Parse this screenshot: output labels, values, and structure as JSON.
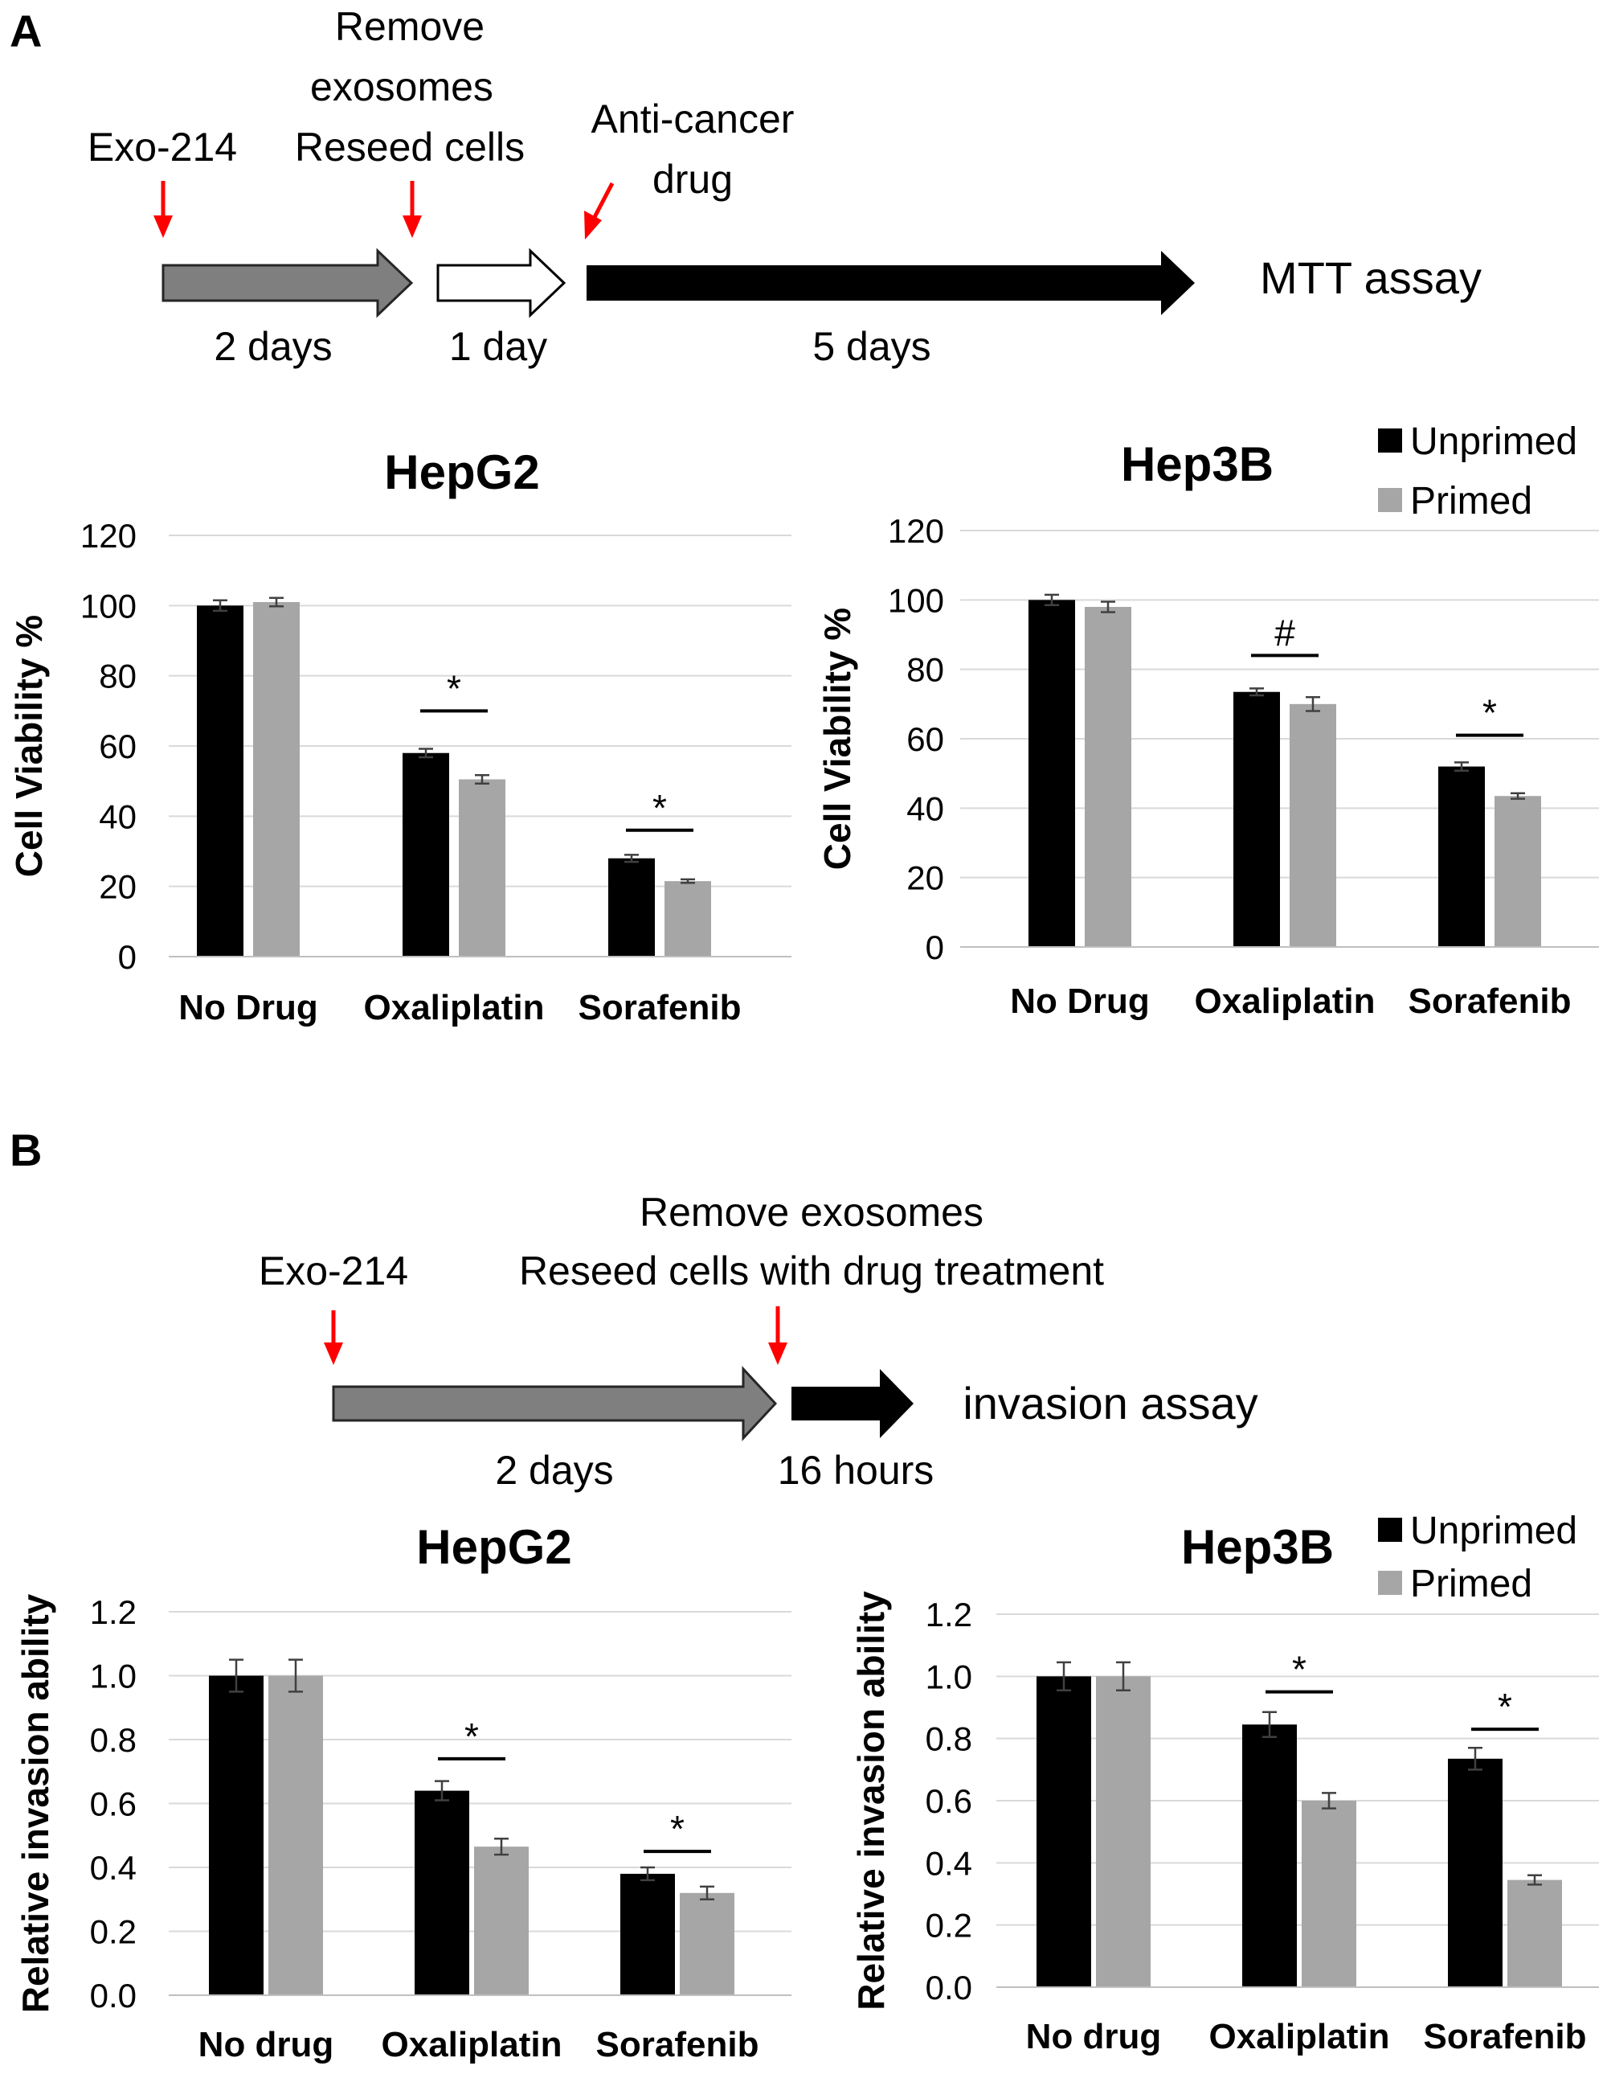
{
  "colors": {
    "unprimed": "#000000",
    "primed": "#a6a6a6",
    "arrow_gray": "#7f7f7f",
    "marker_red": "#ff0000",
    "grid": "#d9d9d9"
  },
  "panelA": {
    "label": "A",
    "timeline": {
      "step1": [
        "Exo-214"
      ],
      "step2": [
        "Remove",
        "exosomes",
        "Reseed cells"
      ],
      "step3": [
        "Anti-cancer",
        "drug"
      ],
      "dur1": "2 days",
      "dur2": "1 day",
      "dur3": "5 days",
      "end_label": "MTT assay"
    }
  },
  "panelB": {
    "label": "B",
    "timeline": {
      "step1": [
        "Exo-214"
      ],
      "step2": [
        "Remove exosomes",
        "Reseed cells with drug treatment"
      ],
      "dur1": "2 days",
      "dur2": "16 hours",
      "end_label": "invasion assay"
    }
  },
  "legend": {
    "unprimed": "Unprimed",
    "primed": "Primed",
    "placement": "top-right"
  },
  "chart_data": [
    {
      "type": "bar",
      "title": "HepG2",
      "ylabel": "Cell Viability %",
      "categories": [
        "No Drug",
        "Oxaliplatin",
        "Sorafenib"
      ],
      "ylim": [
        0,
        120
      ],
      "yticks": [
        0,
        20,
        40,
        60,
        80,
        100,
        120
      ],
      "tick_decimals": 0,
      "grid": true,
      "series": [
        {
          "name": "Unprimed",
          "values": [
            100,
            58,
            28
          ],
          "errors": [
            1.5,
            1.2,
            1
          ]
        },
        {
          "name": "Primed",
          "values": [
            101,
            50.5,
            21.5
          ],
          "errors": [
            1.2,
            1.2,
            0.5
          ]
        }
      ],
      "annotations": [
        {
          "category": "Oxaliplatin",
          "symbol": "*",
          "y": 70
        },
        {
          "category": "Sorafenib",
          "symbol": "*",
          "y": 36
        }
      ]
    },
    {
      "type": "bar",
      "title": "Hep3B",
      "ylabel": "Cell Viability %",
      "categories": [
        "No Drug",
        "Oxaliplatin",
        "Sorafenib"
      ],
      "ylim": [
        0,
        120
      ],
      "yticks": [
        0,
        20,
        40,
        60,
        80,
        100,
        120
      ],
      "tick_decimals": 0,
      "grid": true,
      "series": [
        {
          "name": "Unprimed",
          "values": [
            100,
            73.5,
            52
          ],
          "errors": [
            1.5,
            1,
            1.2
          ]
        },
        {
          "name": "Primed",
          "values": [
            98,
            70,
            43.5
          ],
          "errors": [
            1.5,
            2,
            0.8
          ]
        }
      ],
      "annotations": [
        {
          "category": "Oxaliplatin",
          "symbol": "#",
          "y": 84
        },
        {
          "category": "Sorafenib",
          "symbol": "*",
          "y": 61
        }
      ]
    },
    {
      "type": "bar",
      "title": "HepG2",
      "ylabel": "Relative invasion ability",
      "categories": [
        "No drug",
        "Oxaliplatin",
        "Sorafenib"
      ],
      "ylim": [
        0,
        1.2
      ],
      "yticks": [
        0,
        0.2,
        0.4,
        0.6,
        0.8,
        1.0,
        1.2
      ],
      "tick_decimals": 1,
      "grid": true,
      "series": [
        {
          "name": "Unprimed",
          "values": [
            1.0,
            0.64,
            0.38
          ],
          "errors": [
            0.05,
            0.03,
            0.02
          ]
        },
        {
          "name": "Primed",
          "values": [
            1.0,
            0.465,
            0.32
          ],
          "errors": [
            0.05,
            0.025,
            0.02
          ]
        }
      ],
      "annotations": [
        {
          "category": "Oxaliplatin",
          "symbol": "*",
          "y": 0.74
        },
        {
          "category": "Sorafenib",
          "symbol": "*",
          "y": 0.45
        }
      ]
    },
    {
      "type": "bar",
      "title": "Hep3B",
      "ylabel": "Relative invasion ability",
      "categories": [
        "No drug",
        "Oxaliplatin",
        "Sorafenib"
      ],
      "ylim": [
        0,
        1.2
      ],
      "yticks": [
        0,
        0.2,
        0.4,
        0.6,
        0.8,
        1.0,
        1.2
      ],
      "tick_decimals": 1,
      "grid": true,
      "series": [
        {
          "name": "Unprimed",
          "values": [
            1.0,
            0.845,
            0.735
          ],
          "errors": [
            0.045,
            0.04,
            0.035
          ]
        },
        {
          "name": "Primed",
          "values": [
            1.0,
            0.6,
            0.345
          ],
          "errors": [
            0.045,
            0.025,
            0.015
          ]
        }
      ],
      "annotations": [
        {
          "category": "Oxaliplatin",
          "symbol": "*",
          "y": 0.95
        },
        {
          "category": "Sorafenib",
          "symbol": "*",
          "y": 0.83
        }
      ]
    }
  ]
}
